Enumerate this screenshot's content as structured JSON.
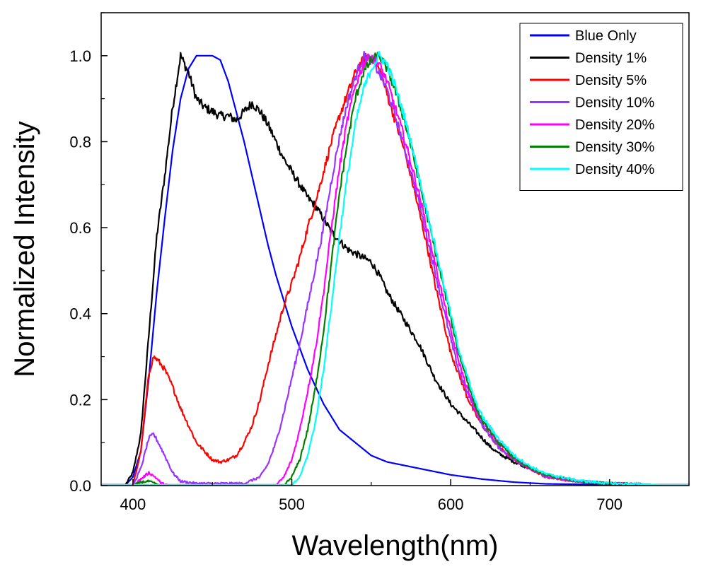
{
  "chart_data": {
    "type": "line",
    "title": "",
    "xlabel": "Wavelength(nm)",
    "ylabel": "Normalized Intensity",
    "xlim": [
      380,
      750
    ],
    "ylim": [
      0,
      1.1
    ],
    "x_ticks": [
      400,
      500,
      600,
      700
    ],
    "x_tick_labels": [
      "400",
      "500",
      "600",
      "700"
    ],
    "y_ticks": [
      0.0,
      0.2,
      0.4,
      0.6,
      0.8,
      1.0
    ],
    "y_tick_labels": [
      "0.0",
      "0.2",
      "0.4",
      "0.6",
      "0.8",
      "1.0"
    ],
    "grid": false,
    "legend_position": "top-right",
    "series": [
      {
        "name": "Blue Only",
        "color": "#0000ff",
        "points": [
          [
            380,
            0
          ],
          [
            395,
            0
          ],
          [
            400,
            0.02
          ],
          [
            405,
            0.08
          ],
          [
            410,
            0.25
          ],
          [
            415,
            0.45
          ],
          [
            420,
            0.62
          ],
          [
            425,
            0.78
          ],
          [
            430,
            0.9
          ],
          [
            435,
            0.97
          ],
          [
            440,
            1.0
          ],
          [
            445,
            1.0
          ],
          [
            450,
            1.0
          ],
          [
            455,
            0.99
          ],
          [
            460,
            0.94
          ],
          [
            465,
            0.87
          ],
          [
            470,
            0.8
          ],
          [
            475,
            0.72
          ],
          [
            480,
            0.64
          ],
          [
            485,
            0.56
          ],
          [
            490,
            0.49
          ],
          [
            495,
            0.43
          ],
          [
            500,
            0.37
          ],
          [
            505,
            0.32
          ],
          [
            510,
            0.27
          ],
          [
            515,
            0.23
          ],
          [
            520,
            0.19
          ],
          [
            525,
            0.16
          ],
          [
            530,
            0.13
          ],
          [
            540,
            0.1
          ],
          [
            550,
            0.07
          ],
          [
            560,
            0.055
          ],
          [
            580,
            0.04
          ],
          [
            600,
            0.025
          ],
          [
            620,
            0.015
          ],
          [
            640,
            0.008
          ],
          [
            660,
            0.004
          ],
          [
            700,
            0.002
          ],
          [
            750,
            0
          ]
        ]
      },
      {
        "name": "Density 1%",
        "color": "#000000",
        "points": [
          [
            380,
            0
          ],
          [
            395,
            0
          ],
          [
            400,
            0.03
          ],
          [
            405,
            0.12
          ],
          [
            410,
            0.35
          ],
          [
            415,
            0.58
          ],
          [
            420,
            0.72
          ],
          [
            425,
            0.88
          ],
          [
            430,
            1.0
          ],
          [
            435,
            0.96
          ],
          [
            440,
            0.9
          ],
          [
            445,
            0.88
          ],
          [
            450,
            0.87
          ],
          [
            455,
            0.86
          ],
          [
            460,
            0.86
          ],
          [
            465,
            0.85
          ],
          [
            470,
            0.87
          ],
          [
            475,
            0.89
          ],
          [
            480,
            0.87
          ],
          [
            485,
            0.84
          ],
          [
            490,
            0.8
          ],
          [
            495,
            0.76
          ],
          [
            500,
            0.73
          ],
          [
            505,
            0.7
          ],
          [
            510,
            0.67
          ],
          [
            515,
            0.65
          ],
          [
            520,
            0.62
          ],
          [
            525,
            0.59
          ],
          [
            530,
            0.57
          ],
          [
            535,
            0.55
          ],
          [
            540,
            0.54
          ],
          [
            545,
            0.53
          ],
          [
            550,
            0.52
          ],
          [
            555,
            0.49
          ],
          [
            560,
            0.45
          ],
          [
            565,
            0.42
          ],
          [
            570,
            0.39
          ],
          [
            575,
            0.36
          ],
          [
            580,
            0.33
          ],
          [
            585,
            0.29
          ],
          [
            590,
            0.25
          ],
          [
            595,
            0.22
          ],
          [
            600,
            0.19
          ],
          [
            605,
            0.17
          ],
          [
            610,
            0.15
          ],
          [
            615,
            0.13
          ],
          [
            620,
            0.11
          ],
          [
            625,
            0.09
          ],
          [
            630,
            0.075
          ],
          [
            640,
            0.055
          ],
          [
            650,
            0.04
          ],
          [
            660,
            0.025
          ],
          [
            670,
            0.015
          ],
          [
            680,
            0.01
          ],
          [
            700,
            0.005
          ],
          [
            750,
            0
          ]
        ]
      },
      {
        "name": "Density 5%",
        "color": "#ff0000",
        "points": [
          [
            380,
            0
          ],
          [
            400,
            0
          ],
          [
            405,
            0.08
          ],
          [
            410,
            0.26
          ],
          [
            413,
            0.3
          ],
          [
            416,
            0.29
          ],
          [
            420,
            0.27
          ],
          [
            425,
            0.23
          ],
          [
            430,
            0.18
          ],
          [
            435,
            0.14
          ],
          [
            440,
            0.1
          ],
          [
            445,
            0.08
          ],
          [
            450,
            0.06
          ],
          [
            455,
            0.055
          ],
          [
            460,
            0.06
          ],
          [
            465,
            0.07
          ],
          [
            470,
            0.1
          ],
          [
            475,
            0.14
          ],
          [
            480,
            0.2
          ],
          [
            485,
            0.28
          ],
          [
            490,
            0.35
          ],
          [
            495,
            0.42
          ],
          [
            500,
            0.47
          ],
          [
            505,
            0.53
          ],
          [
            510,
            0.6
          ],
          [
            515,
            0.66
          ],
          [
            520,
            0.73
          ],
          [
            525,
            0.8
          ],
          [
            530,
            0.86
          ],
          [
            535,
            0.91
          ],
          [
            540,
            0.96
          ],
          [
            545,
            0.99
          ],
          [
            548,
            1.0
          ],
          [
            552,
            0.99
          ],
          [
            556,
            0.96
          ],
          [
            560,
            0.91
          ],
          [
            565,
            0.85
          ],
          [
            570,
            0.79
          ],
          [
            575,
            0.72
          ],
          [
            580,
            0.64
          ],
          [
            585,
            0.56
          ],
          [
            590,
            0.47
          ],
          [
            595,
            0.39
          ],
          [
            600,
            0.31
          ],
          [
            605,
            0.26
          ],
          [
            610,
            0.21
          ],
          [
            615,
            0.17
          ],
          [
            620,
            0.14
          ],
          [
            630,
            0.09
          ],
          [
            640,
            0.06
          ],
          [
            650,
            0.04
          ],
          [
            660,
            0.02
          ],
          [
            680,
            0.01
          ],
          [
            700,
            0.005
          ],
          [
            750,
            0
          ]
        ]
      },
      {
        "name": "Density 10%",
        "color": "#9933ff",
        "points": [
          [
            380,
            0
          ],
          [
            400,
            0
          ],
          [
            405,
            0.04
          ],
          [
            410,
            0.11
          ],
          [
            413,
            0.12
          ],
          [
            416,
            0.1
          ],
          [
            420,
            0.07
          ],
          [
            425,
            0.03
          ],
          [
            430,
            0.01
          ],
          [
            440,
            0.005
          ],
          [
            470,
            0.005
          ],
          [
            480,
            0.02
          ],
          [
            485,
            0.05
          ],
          [
            490,
            0.1
          ],
          [
            495,
            0.17
          ],
          [
            500,
            0.25
          ],
          [
            505,
            0.33
          ],
          [
            510,
            0.42
          ],
          [
            515,
            0.51
          ],
          [
            520,
            0.6
          ],
          [
            525,
            0.71
          ],
          [
            530,
            0.81
          ],
          [
            535,
            0.89
          ],
          [
            540,
            0.95
          ],
          [
            545,
            1.0
          ],
          [
            550,
            0.99
          ],
          [
            555,
            0.96
          ],
          [
            560,
            0.92
          ],
          [
            565,
            0.86
          ],
          [
            570,
            0.8
          ],
          [
            575,
            0.73
          ],
          [
            580,
            0.66
          ],
          [
            585,
            0.58
          ],
          [
            590,
            0.5
          ],
          [
            595,
            0.42
          ],
          [
            600,
            0.34
          ],
          [
            605,
            0.27
          ],
          [
            610,
            0.22
          ],
          [
            615,
            0.18
          ],
          [
            620,
            0.14
          ],
          [
            630,
            0.09
          ],
          [
            640,
            0.06
          ],
          [
            650,
            0.04
          ],
          [
            660,
            0.02
          ],
          [
            680,
            0.01
          ],
          [
            700,
            0.005
          ],
          [
            750,
            0
          ]
        ]
      },
      {
        "name": "Density 20%",
        "color": "#ff00ff",
        "points": [
          [
            380,
            0
          ],
          [
            400,
            0
          ],
          [
            405,
            0.015
          ],
          [
            410,
            0.03
          ],
          [
            414,
            0.02
          ],
          [
            418,
            0.005
          ],
          [
            425,
            0
          ],
          [
            490,
            0
          ],
          [
            495,
            0.02
          ],
          [
            500,
            0.06
          ],
          [
            505,
            0.13
          ],
          [
            510,
            0.22
          ],
          [
            515,
            0.32
          ],
          [
            520,
            0.45
          ],
          [
            525,
            0.6
          ],
          [
            530,
            0.74
          ],
          [
            535,
            0.85
          ],
          [
            540,
            0.93
          ],
          [
            545,
            0.98
          ],
          [
            550,
            1.0
          ],
          [
            555,
            0.98
          ],
          [
            560,
            0.94
          ],
          [
            565,
            0.88
          ],
          [
            570,
            0.82
          ],
          [
            575,
            0.75
          ],
          [
            580,
            0.68
          ],
          [
            585,
            0.6
          ],
          [
            590,
            0.52
          ],
          [
            595,
            0.44
          ],
          [
            600,
            0.36
          ],
          [
            605,
            0.29
          ],
          [
            610,
            0.23
          ],
          [
            615,
            0.18
          ],
          [
            620,
            0.15
          ],
          [
            630,
            0.1
          ],
          [
            640,
            0.065
          ],
          [
            650,
            0.04
          ],
          [
            660,
            0.025
          ],
          [
            680,
            0.01
          ],
          [
            700,
            0.005
          ],
          [
            750,
            0
          ]
        ]
      },
      {
        "name": "Density 30%",
        "color": "#008000",
        "points": [
          [
            380,
            0
          ],
          [
            400,
            0
          ],
          [
            405,
            0.008
          ],
          [
            410,
            0.01
          ],
          [
            415,
            0.003
          ],
          [
            420,
            0
          ],
          [
            495,
            0
          ],
          [
            500,
            0.02
          ],
          [
            505,
            0.06
          ],
          [
            510,
            0.13
          ],
          [
            515,
            0.23
          ],
          [
            520,
            0.36
          ],
          [
            525,
            0.52
          ],
          [
            530,
            0.68
          ],
          [
            535,
            0.8
          ],
          [
            540,
            0.9
          ],
          [
            545,
            0.96
          ],
          [
            550,
            0.99
          ],
          [
            555,
            1.0
          ],
          [
            560,
            0.97
          ],
          [
            565,
            0.92
          ],
          [
            570,
            0.86
          ],
          [
            575,
            0.79
          ],
          [
            580,
            0.71
          ],
          [
            585,
            0.63
          ],
          [
            590,
            0.55
          ],
          [
            595,
            0.47
          ],
          [
            600,
            0.39
          ],
          [
            605,
            0.31
          ],
          [
            610,
            0.25
          ],
          [
            615,
            0.19
          ],
          [
            620,
            0.15
          ],
          [
            630,
            0.1
          ],
          [
            640,
            0.065
          ],
          [
            650,
            0.04
          ],
          [
            660,
            0.025
          ],
          [
            680,
            0.01
          ],
          [
            700,
            0.005
          ],
          [
            750,
            0
          ]
        ]
      },
      {
        "name": "Density 40%",
        "color": "#00ffff",
        "points": [
          [
            380,
            0
          ],
          [
            500,
            0
          ],
          [
            505,
            0.02
          ],
          [
            510,
            0.07
          ],
          [
            515,
            0.15
          ],
          [
            520,
            0.27
          ],
          [
            525,
            0.42
          ],
          [
            530,
            0.58
          ],
          [
            535,
            0.72
          ],
          [
            540,
            0.84
          ],
          [
            545,
            0.92
          ],
          [
            550,
            0.97
          ],
          [
            555,
            1.0
          ],
          [
            560,
            0.98
          ],
          [
            565,
            0.93
          ],
          [
            570,
            0.87
          ],
          [
            575,
            0.8
          ],
          [
            580,
            0.72
          ],
          [
            585,
            0.64
          ],
          [
            590,
            0.56
          ],
          [
            595,
            0.48
          ],
          [
            600,
            0.4
          ],
          [
            605,
            0.32
          ],
          [
            610,
            0.26
          ],
          [
            615,
            0.2
          ],
          [
            620,
            0.16
          ],
          [
            630,
            0.11
          ],
          [
            640,
            0.07
          ],
          [
            650,
            0.045
          ],
          [
            660,
            0.027
          ],
          [
            680,
            0.012
          ],
          [
            700,
            0.005
          ],
          [
            750,
            0
          ]
        ]
      }
    ]
  }
}
